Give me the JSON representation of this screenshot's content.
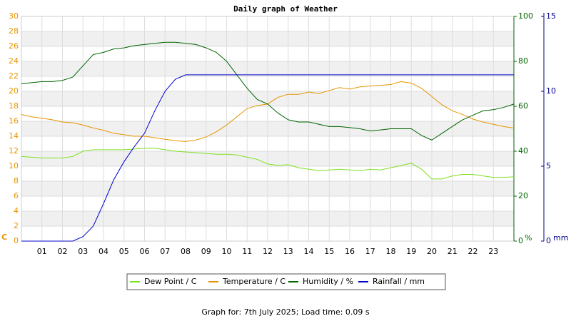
{
  "chart_data": {
    "type": "line",
    "title": "Daily graph of Weather",
    "footer": "Graph for: 7th July 2025; Load time: 0.09 s",
    "y_unit": "C",
    "y2_unit": "%",
    "y3_unit": "mm",
    "xlim": [
      0,
      24
    ],
    "xticks": [
      {
        "value": 1,
        "label": "01"
      },
      {
        "value": 2,
        "label": "02"
      },
      {
        "value": 3,
        "label": "03"
      },
      {
        "value": 4,
        "label": "04"
      },
      {
        "value": 5,
        "label": "05"
      },
      {
        "value": 6,
        "label": "06"
      },
      {
        "value": 7,
        "label": "07"
      },
      {
        "value": 8,
        "label": "08"
      },
      {
        "value": 9,
        "label": "09"
      },
      10,
      11,
      12,
      13,
      14,
      15,
      16,
      17,
      18,
      19,
      20,
      21,
      22,
      23
    ],
    "ylim": [
      0,
      30
    ],
    "yticks": [
      0,
      2,
      4,
      6,
      8,
      10,
      12,
      14,
      16,
      18,
      20,
      22,
      24,
      26,
      28,
      30
    ],
    "y_color": "#e69500",
    "y2lim": [
      0,
      100
    ],
    "y2ticks": [
      0,
      20,
      40,
      60,
      80,
      100
    ],
    "y2_color": "#006400",
    "y3lim": [
      0,
      15
    ],
    "y3ticks": [
      0,
      5,
      10,
      15
    ],
    "y3_color": "#00008b",
    "grid": true,
    "x": [
      0,
      0.5,
      1,
      1.5,
      2,
      2.5,
      3,
      3.5,
      4,
      4.5,
      5,
      5.5,
      6,
      6.5,
      7,
      7.5,
      8,
      8.5,
      9,
      9.5,
      10,
      10.5,
      11,
      11.5,
      12,
      12.5,
      13,
      13.5,
      14,
      14.5,
      15,
      15.5,
      16,
      16.5,
      17,
      17.5,
      18,
      18.5,
      19,
      19.5,
      20,
      20.5,
      21,
      21.5,
      22,
      22.5,
      23,
      23.5,
      24
    ],
    "series": [
      {
        "name": "Dew Point / C",
        "color": "#7ee01e",
        "axis": "y",
        "values": [
          11.3,
          11.2,
          11.1,
          11.1,
          11.1,
          11.3,
          12.0,
          12.2,
          12.2,
          12.2,
          12.2,
          12.3,
          12.4,
          12.4,
          12.2,
          12.0,
          11.9,
          11.8,
          11.7,
          11.6,
          11.6,
          11.5,
          11.2,
          10.9,
          10.3,
          10.1,
          10.2,
          9.8,
          9.6,
          9.4,
          9.5,
          9.6,
          9.5,
          9.4,
          9.6,
          9.5,
          9.8,
          10.1,
          10.4,
          9.6,
          8.3,
          8.3,
          8.7,
          8.9,
          8.9,
          8.7,
          8.5,
          8.5,
          8.6
        ]
      },
      {
        "name": "Temperature / C",
        "color": "#e69500",
        "axis": "y",
        "values": [
          16.9,
          16.6,
          16.4,
          16.2,
          15.9,
          15.8,
          15.5,
          15.1,
          14.8,
          14.4,
          14.2,
          14.0,
          14.0,
          13.8,
          13.6,
          13.4,
          13.3,
          13.5,
          13.9,
          14.6,
          15.5,
          16.6,
          17.7,
          18.1,
          18.3,
          19.2,
          19.6,
          19.6,
          19.9,
          19.7,
          20.1,
          20.5,
          20.3,
          20.6,
          20.7,
          20.8,
          20.9,
          21.3,
          21.1,
          20.4,
          19.3,
          18.2,
          17.4,
          16.9,
          16.3,
          15.9,
          15.6,
          15.3,
          15.1
        ]
      },
      {
        "name": "Humidity / %",
        "color": "#006400",
        "axis": "y2",
        "values": [
          70,
          70.5,
          71,
          71,
          71.5,
          73,
          78,
          83,
          84,
          85.5,
          86,
          87,
          87.5,
          88,
          88.5,
          88.5,
          88,
          87.5,
          86,
          84,
          80,
          74,
          68,
          63,
          61,
          57,
          54,
          53,
          53,
          52,
          51,
          51,
          50.5,
          50,
          49,
          49.5,
          50,
          50,
          50,
          47,
          45,
          48,
          51,
          54,
          56,
          58,
          58.5,
          59.5,
          61
        ]
      },
      {
        "name": "Rainfall / mm",
        "color": "#0000cc",
        "axis": "y3",
        "values": [
          0,
          0,
          0,
          0,
          0,
          0,
          0.3,
          1,
          2.5,
          4.1,
          5.3,
          6.3,
          7.2,
          8.7,
          10,
          10.8,
          11.1,
          11.1,
          11.1,
          11.1,
          11.1,
          11.1,
          11.1,
          11.1,
          11.1,
          11.1,
          11.1,
          11.1,
          11.1,
          11.1,
          11.1,
          11.1,
          11.1,
          11.1,
          11.1,
          11.1,
          11.1,
          11.1,
          11.1,
          11.1,
          11.1,
          11.1,
          11.1,
          11.1,
          11.1,
          11.1,
          11.1,
          11.1,
          11.1
        ]
      }
    ]
  }
}
